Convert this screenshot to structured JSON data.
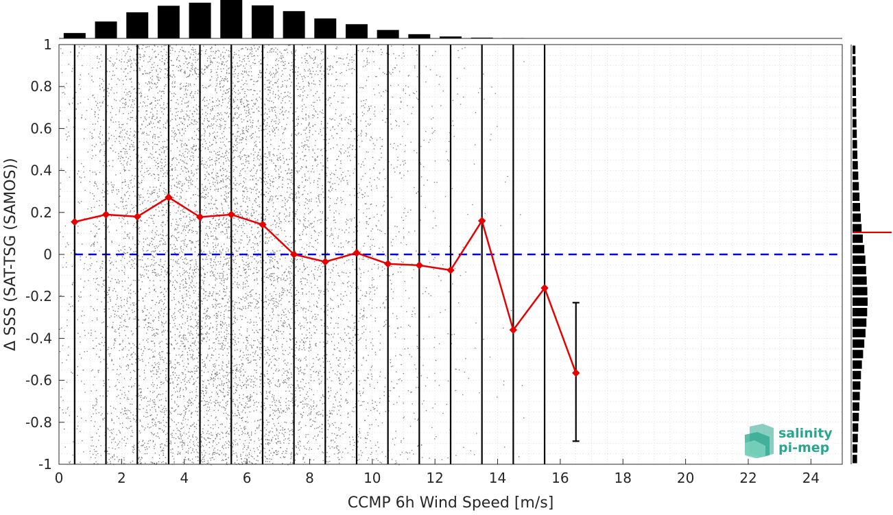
{
  "chart_data": {
    "type": "scatter",
    "xlabel": "CCMP 6h Wind Speed [m/s]",
    "ylabel": "Δ SSS (SAT-TSG (SAMOS))",
    "xlim": [
      0,
      25
    ],
    "ylim": [
      -1,
      1
    ],
    "x_ticks": [
      0,
      2,
      4,
      6,
      8,
      10,
      12,
      14,
      16,
      18,
      20,
      22,
      24
    ],
    "y_ticks": [
      -1,
      -0.8,
      -0.6,
      -0.4,
      -0.2,
      0,
      0.2,
      0.4,
      0.6,
      0.8,
      1
    ],
    "grid": true,
    "zero_line": {
      "y": 0,
      "color": "#0000e6",
      "style": "dashed"
    },
    "scatter_color": "#808080",
    "bin_centers": [
      0.5,
      1.5,
      2.5,
      3.5,
      4.5,
      5.5,
      6.5,
      7.5,
      8.5,
      9.5,
      10.5,
      11.5,
      12.5,
      13.5,
      14.5,
      15.5,
      16.5
    ],
    "bin_error_bars": [
      {
        "x": 0.5,
        "low": -1,
        "high": 1
      },
      {
        "x": 1.5,
        "low": -1,
        "high": 1
      },
      {
        "x": 2.5,
        "low": -1,
        "high": 1
      },
      {
        "x": 3.5,
        "low": -1,
        "high": 1
      },
      {
        "x": 4.5,
        "low": -1,
        "high": 1
      },
      {
        "x": 5.5,
        "low": -1,
        "high": 1
      },
      {
        "x": 6.5,
        "low": -1,
        "high": 1
      },
      {
        "x": 7.5,
        "low": -1,
        "high": 1
      },
      {
        "x": 8.5,
        "low": -1,
        "high": 1
      },
      {
        "x": 9.5,
        "low": -1,
        "high": 1
      },
      {
        "x": 10.5,
        "low": -1,
        "high": 1
      },
      {
        "x": 11.5,
        "low": -1,
        "high": 1
      },
      {
        "x": 12.5,
        "low": -1,
        "high": 1
      },
      {
        "x": 13.5,
        "low": -1,
        "high": 1
      },
      {
        "x": 14.5,
        "low": -1,
        "high": 1
      },
      {
        "x": 15.5,
        "low": -1,
        "high": 1
      },
      {
        "x": 16.5,
        "low": -0.89,
        "high": -0.23
      }
    ],
    "series": [
      {
        "marker": "diamond",
        "color": "#e60000",
        "x": [
          0.5,
          1.5,
          2.5,
          3.5,
          4.5,
          5.5,
          6.5,
          7.5,
          8.5,
          9.5,
          10.5,
          11.5,
          12.5,
          13.5,
          14.5,
          15.5,
          16.5
        ],
        "y": [
          0.155,
          0.19,
          0.18,
          0.272,
          0.178,
          0.19,
          0.142,
          0.0,
          -0.035,
          0.007,
          -0.045,
          -0.052,
          -0.075,
          0.16,
          -0.36,
          -0.16,
          -0.565
        ]
      }
    ],
    "top_histogram": {
      "bin_centers": [
        0.5,
        1.5,
        2.5,
        3.5,
        4.5,
        5.5,
        6.5,
        7.5,
        8.5,
        9.5,
        10.5,
        11.5,
        12.5,
        13.5,
        14.5
      ],
      "relative_counts": [
        0.14,
        0.44,
        0.68,
        0.85,
        0.93,
        1.0,
        0.86,
        0.71,
        0.52,
        0.37,
        0.22,
        0.11,
        0.05,
        0.02,
        0.01
      ]
    },
    "side_histogram": {
      "bin_centers": [
        -0.975,
        -0.925,
        -0.875,
        -0.825,
        -0.775,
        -0.725,
        -0.675,
        -0.625,
        -0.575,
        -0.525,
        -0.475,
        -0.425,
        -0.375,
        -0.325,
        -0.275,
        -0.225,
        -0.175,
        -0.125,
        -0.075,
        -0.025,
        0.025,
        0.075,
        0.125,
        0.175,
        0.225,
        0.275,
        0.325,
        0.375,
        0.425,
        0.475,
        0.525,
        0.575,
        0.625,
        0.675,
        0.725,
        0.775,
        0.825,
        0.875,
        0.925,
        0.975
      ],
      "relative_counts": [
        0.3,
        0.32,
        0.35,
        0.38,
        0.42,
        0.45,
        0.48,
        0.52,
        0.56,
        0.62,
        0.7,
        0.78,
        0.86,
        0.92,
        0.97,
        1.0,
        0.98,
        0.94,
        0.9,
        0.85,
        0.78,
        0.68,
        0.6,
        0.55,
        0.5,
        0.46,
        0.42,
        0.38,
        0.35,
        0.32,
        0.3,
        0.28,
        0.26,
        0.25,
        0.24,
        0.23,
        0.22,
        0.21,
        0.2,
        0.19
      ],
      "mean_marker": {
        "y": 0.105,
        "color": "#e60000"
      }
    }
  },
  "logo": {
    "line1": "salinity",
    "line2": "pi-mep",
    "color": "#2aa58e"
  }
}
